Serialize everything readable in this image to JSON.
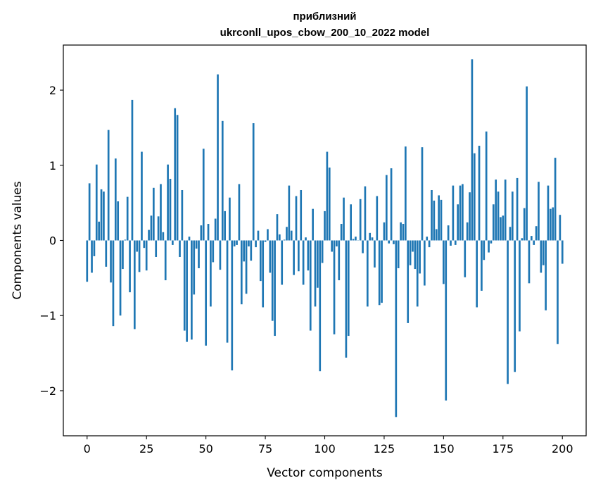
{
  "chart_data": {
    "type": "bar",
    "title_line1": "приблизний",
    "title_line2": "ukrconll_upos_cbow_200_10_2022 model",
    "xlabel": "Vector components",
    "ylabel": "Components values",
    "xlim": [
      -10,
      210
    ],
    "ylim": [
      -2.6,
      2.6
    ],
    "xticks": [
      0,
      25,
      50,
      75,
      100,
      125,
      150,
      175,
      200
    ],
    "yticks": [
      -2,
      -1,
      0,
      1,
      2
    ],
    "ytick_labels": [
      "−2",
      "−1",
      "0",
      "1",
      "2"
    ],
    "bar_color": "#1f77b4",
    "values": [
      -0.55,
      0.76,
      -0.43,
      -0.21,
      1.01,
      0.25,
      0.68,
      0.65,
      -0.35,
      1.47,
      -0.56,
      -1.14,
      1.09,
      0.52,
      -1.0,
      -0.38,
      0.01,
      0.58,
      -0.69,
      1.87,
      -1.18,
      -0.15,
      -0.42,
      1.18,
      -0.1,
      -0.4,
      0.14,
      0.33,
      0.7,
      -0.22,
      0.32,
      0.75,
      0.11,
      -0.53,
      1.01,
      0.82,
      -0.06,
      1.76,
      1.67,
      -0.22,
      0.67,
      -1.2,
      -1.35,
      0.05,
      -1.32,
      -0.72,
      -0.11,
      -0.37,
      0.2,
      1.22,
      -1.4,
      0.22,
      -0.88,
      -0.29,
      0.29,
      2.21,
      -0.39,
      1.59,
      0.39,
      -1.36,
      0.57,
      -1.73,
      -0.08,
      -0.06,
      0.75,
      -0.85,
      -0.28,
      -0.71,
      -0.08,
      -0.27,
      1.56,
      -0.09,
      0.13,
      -0.54,
      -0.89,
      -0.02,
      0.15,
      -0.43,
      -1.07,
      -1.27,
      0.35,
      0.08,
      -0.59,
      0.01,
      0.18,
      0.73,
      0.13,
      -0.46,
      0.59,
      -0.41,
      0.67,
      -0.59,
      0.04,
      -0.4,
      -1.2,
      0.42,
      -0.88,
      -0.63,
      -1.74,
      -0.3,
      0.39,
      1.18,
      0.97,
      -0.15,
      -1.25,
      -0.08,
      -0.53,
      0.22,
      0.57,
      -1.56,
      -1.27,
      0.48,
      0.02,
      0.05,
      0.0,
      0.55,
      -0.17,
      0.72,
      -0.88,
      0.1,
      0.04,
      -0.36,
      0.59,
      -0.86,
      -0.83,
      0.24,
      0.87,
      -0.04,
      0.96,
      -0.05,
      -2.35,
      -0.37,
      0.24,
      0.22,
      1.25,
      -1.1,
      -0.33,
      -0.15,
      -0.38,
      -0.88,
      -0.44,
      1.24,
      -0.6,
      0.05,
      -0.09,
      0.67,
      0.53,
      0.15,
      0.6,
      0.54,
      -0.58,
      -2.13,
      0.2,
      -0.07,
      0.73,
      -0.06,
      0.48,
      0.73,
      0.75,
      -0.49,
      0.24,
      0.64,
      2.41,
      1.16,
      -0.89,
      1.26,
      -0.67,
      -0.26,
      1.45,
      -0.16,
      -0.04,
      0.48,
      0.81,
      0.65,
      0.31,
      0.33,
      0.81,
      -1.91,
      0.18,
      0.65,
      -1.75,
      0.83,
      -1.21,
      0.03,
      0.43,
      2.05,
      -0.57,
      0.06,
      -0.06,
      0.19,
      0.78,
      -0.43,
      -0.33,
      -0.93,
      0.73,
      0.42,
      0.44,
      1.1,
      -1.38,
      0.34,
      -0.31
    ]
  }
}
